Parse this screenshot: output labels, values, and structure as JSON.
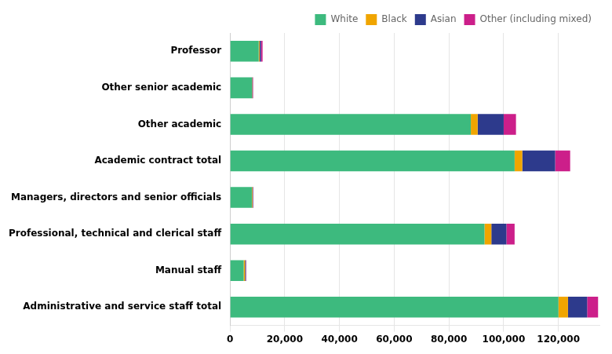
{
  "chart_data": {
    "type": "bar",
    "orientation": "horizontal",
    "stacked": true,
    "categories": [
      "Professor",
      "Other senior academic",
      "Other academic",
      "Academic contract total",
      "Managers, directors and senior officials",
      "Professional, technical and clerical staff",
      "Manual staff",
      "Administrative and service staff total"
    ],
    "series": [
      {
        "name": "White",
        "color": "#3dba7e",
        "values": [
          10500,
          8000,
          88000,
          104000,
          8000,
          93000,
          5000,
          120000
        ]
      },
      {
        "name": "Black",
        "color": "#f0a500",
        "values": [
          300,
          100,
          2500,
          2800,
          200,
          2500,
          500,
          3500
        ]
      },
      {
        "name": "Asian",
        "color": "#2d3a8c",
        "values": [
          500,
          200,
          9500,
          12000,
          200,
          5500,
          300,
          7000
        ]
      },
      {
        "name": "Other (including mixed)",
        "color": "#cc1f8a",
        "values": [
          600,
          150,
          4500,
          5500,
          150,
          3000,
          150,
          4000
        ]
      }
    ],
    "xlim": [
      0,
      135000
    ],
    "xticks": [
      0,
      {
        "value": 20000,
        "label": "20,000"
      },
      {
        "value": 40000,
        "label": "40,000"
      },
      {
        "value": 60000,
        "label": "60,000"
      },
      {
        "value": 80000,
        "label": "80,000"
      },
      {
        "value": 100000,
        "label": "100,000"
      },
      {
        "value": 120000,
        "label": "120,000"
      }
    ],
    "grid": true,
    "legend": "upper right"
  }
}
